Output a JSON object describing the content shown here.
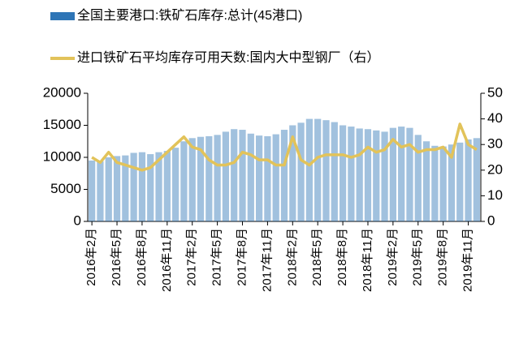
{
  "chart_data": {
    "type": "bar-line",
    "categories": [
      "2016年2月",
      null,
      null,
      "2016年5月",
      null,
      null,
      "2016年8月",
      null,
      null,
      "2016年11月",
      null,
      null,
      "2017年2月",
      null,
      null,
      "2017年5月",
      null,
      null,
      "2017年8月",
      null,
      null,
      "2017年11月",
      null,
      null,
      "2018年2月",
      null,
      null,
      "2018年5月",
      null,
      null,
      "2018年8月",
      null,
      null,
      "2018年11月",
      null,
      null,
      "2019年2月",
      null,
      null,
      "2019年5月",
      null,
      null,
      "2019年8月",
      null,
      null,
      "2019年11月",
      null
    ],
    "series": [
      {
        "name": "全国主要港口:铁矿石库存:总计(45港口)",
        "color": "#2e75b6",
        "type": "bar",
        "axis": "y",
        "values": [
          9500,
          9400,
          10000,
          10200,
          10300,
          10700,
          10800,
          10500,
          10800,
          11000,
          11500,
          12500,
          13000,
          13200,
          13300,
          13500,
          14000,
          14400,
          14300,
          13700,
          13400,
          13300,
          13600,
          14300,
          15000,
          15400,
          16000,
          16000,
          15800,
          15500,
          15000,
          14800,
          14500,
          14400,
          14200,
          14000,
          14600,
          14800,
          14600,
          13500,
          12500,
          11800,
          11700,
          12000,
          12300,
          12800,
          13000
        ]
      },
      {
        "name": "进口铁矿石平均库存可用天数:国内大中型钢厂（右）",
        "color": "#e2c35a",
        "type": "line",
        "axis": "y2",
        "values": [
          25,
          23,
          27,
          23,
          22,
          21,
          20,
          21,
          24,
          27,
          30,
          33,
          29,
          28,
          24,
          22,
          22,
          23,
          27,
          26,
          24,
          24,
          22,
          22,
          33,
          24,
          22,
          25,
          26,
          26,
          26,
          25,
          26,
          29,
          27,
          28,
          32,
          29,
          30,
          27,
          28,
          28,
          29,
          25,
          38,
          30,
          28
        ]
      }
    ],
    "ylim": [
      0,
      20000
    ],
    "yticks": [
      0,
      5000,
      10000,
      15000,
      20000
    ],
    "y2lim": [
      0,
      50
    ],
    "y2ticks": [
      0,
      10,
      20,
      30,
      40,
      50
    ]
  }
}
